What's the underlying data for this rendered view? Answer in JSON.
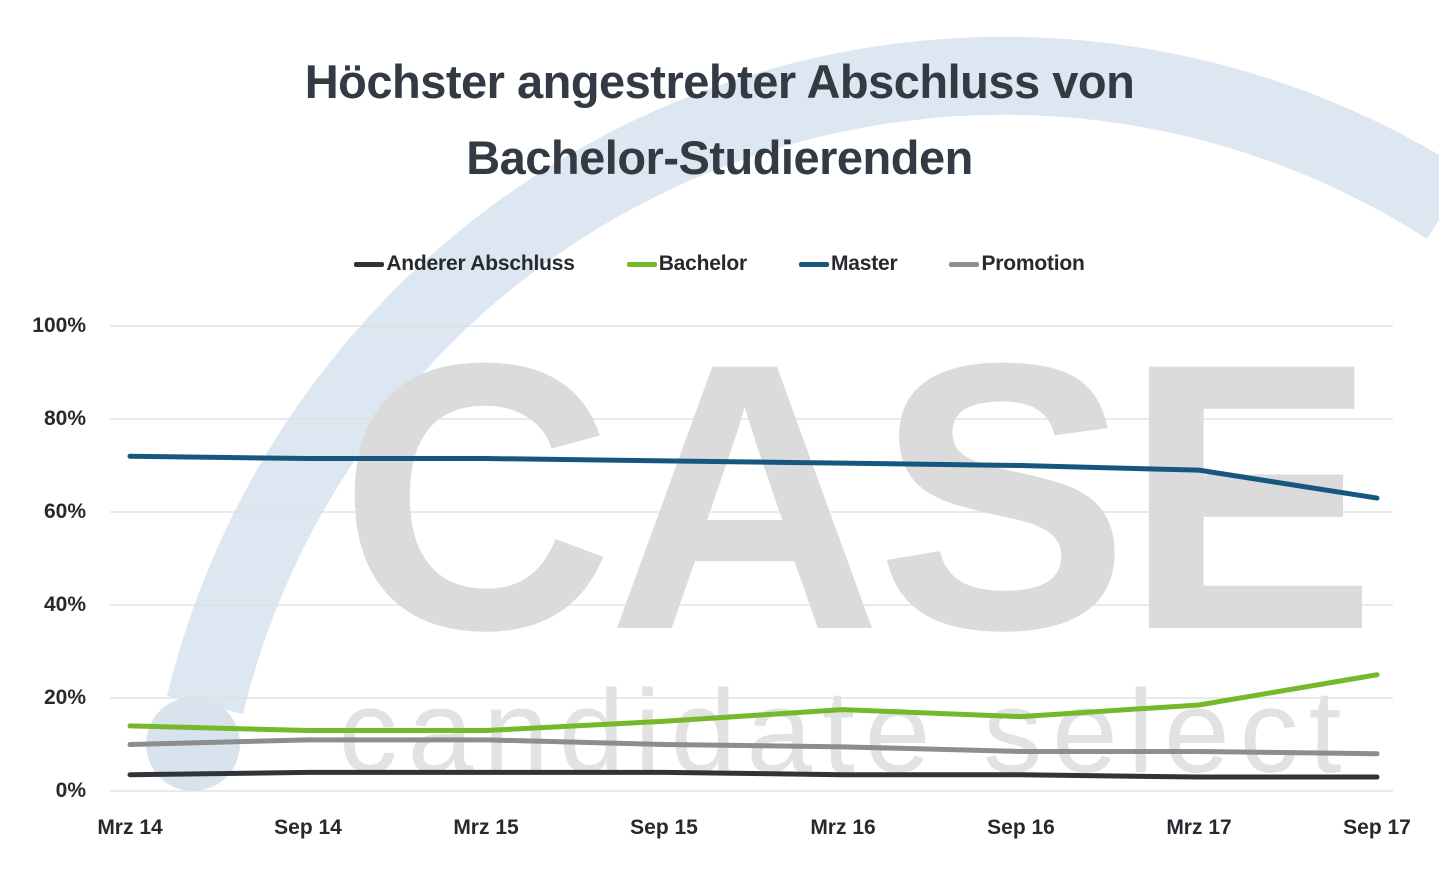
{
  "title": {
    "line1": "Höchster angestrebter Abschluss von",
    "line2": "Bachelor-Studierenden"
  },
  "legend": {
    "items": [
      {
        "label": "Anderer Abschluss",
        "color": "#303439"
      },
      {
        "label": "Bachelor",
        "color": "#76b82a"
      },
      {
        "label": "Master",
        "color": "#16587d"
      },
      {
        "label": "Promotion",
        "color": "#8d8d8d"
      }
    ]
  },
  "watermark": {
    "word": "CASE",
    "tagline": "candidate select"
  },
  "chart_data": {
    "type": "line",
    "categories": [
      "Mrz 14",
      "Sep 14",
      "Mrz 15",
      "Sep 15",
      "Mrz 16",
      "Sep 16",
      "Mrz 17",
      "Sep 17"
    ],
    "series": [
      {
        "name": "Anderer Abschluss",
        "color": "#303439",
        "values": [
          3.5,
          4,
          4,
          4,
          3.5,
          3.5,
          3,
          3
        ]
      },
      {
        "name": "Bachelor",
        "color": "#76b82a",
        "values": [
          14,
          13,
          13,
          15,
          17.5,
          16,
          18.5,
          25
        ]
      },
      {
        "name": "Master",
        "color": "#16587d",
        "values": [
          72,
          71.5,
          71.5,
          71,
          70.5,
          70,
          69,
          63
        ]
      },
      {
        "name": "Promotion",
        "color": "#8d8d8d",
        "values": [
          10,
          11,
          11,
          10,
          9.5,
          8.5,
          8.5,
          8
        ]
      }
    ],
    "title": "Höchster angestrebter Abschluss von Bachelor-Studierenden",
    "xlabel": "",
    "ylabel": "",
    "ylim": [
      0,
      100
    ],
    "yticks": [
      "0%",
      "20%",
      "40%",
      "60%",
      "80%",
      "100%"
    ],
    "grid": true,
    "legend_position": "top"
  },
  "colors": {
    "grid": "#dedede",
    "swoosh": "#dde7f1",
    "ball": "#d8e3ee",
    "watermark": "#dbdbdb",
    "tagline": "#e2e2e2"
  }
}
